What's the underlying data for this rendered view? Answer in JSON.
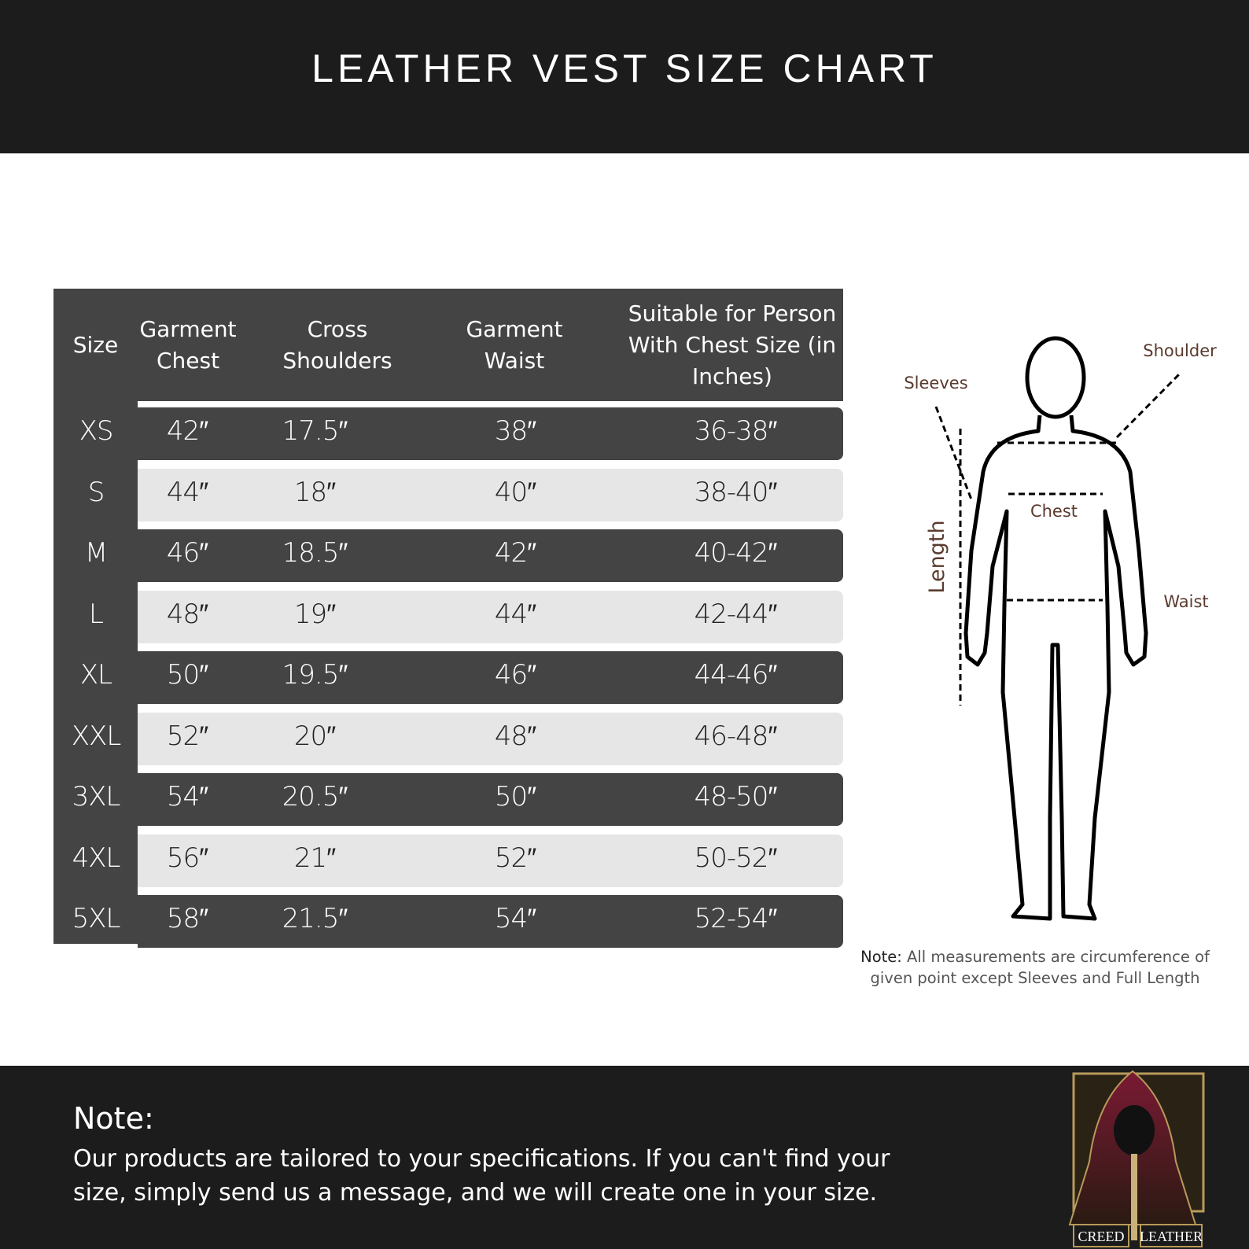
{
  "header": {
    "title": "LEATHER VEST SIZE CHART"
  },
  "table": {
    "columns": [
      "Size",
      "Garment Chest",
      "Cross Shoulders",
      "Garment Waist",
      "Suitable for Person With Chest Size (in Inches)"
    ],
    "rows": [
      [
        "XS",
        "42″",
        "17.5″",
        "38″",
        "36-38″"
      ],
      [
        "S",
        "44″",
        "18″",
        "40″",
        "38-40″"
      ],
      [
        "M",
        "46″",
        "18.5″",
        "42″",
        "40-42″"
      ],
      [
        "L",
        "48″",
        "19″",
        "44″",
        "42-44″"
      ],
      [
        "XL",
        "50″",
        "19.5″",
        "46″",
        "44-46″"
      ],
      [
        "XXL",
        "52″",
        "20″",
        "48″",
        "46-48″"
      ],
      [
        "3XL",
        "54″",
        "20.5″",
        "50″",
        "48-50″"
      ],
      [
        "4XL",
        "56″",
        "21″",
        "52″",
        "50-52″"
      ],
      [
        "5XL",
        "58″",
        "21.5″",
        "54″",
        "52-54″"
      ]
    ]
  },
  "figure": {
    "labels": {
      "sleeves": "Sleeves",
      "shoulder": "Shoulder",
      "chest": "Chest",
      "length": "Length",
      "waist": "Waist"
    },
    "note_label": "Note:",
    "note_text": "All measurements are circumference of given point except Sleeves and Full Length"
  },
  "footer": {
    "note_title": "Note:",
    "note_text": "Our products are tailored to your specifications. If you can't find your size, simply send us a message, and we will create one in your size.",
    "logo": [
      "CREED",
      "LEATHER"
    ]
  }
}
